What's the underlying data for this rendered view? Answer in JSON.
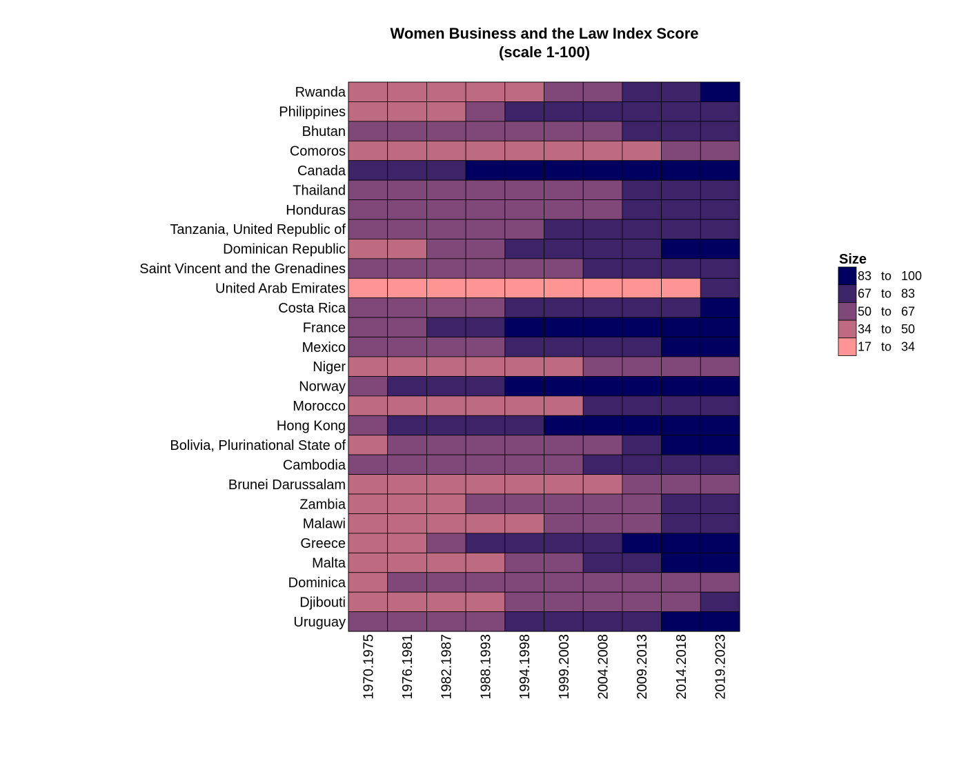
{
  "chart_data": {
    "type": "heatmap",
    "title": "Women Business and the Law Index Score",
    "subtitle": "(scale 1-100)",
    "rows": [
      "Rwanda",
      "Philippines",
      "Bhutan",
      "Comoros",
      "Canada",
      "Thailand",
      "Honduras",
      "Tanzania, United Republic of",
      "Dominican Republic",
      "Saint Vincent and the Grenadines",
      "United Arab Emirates",
      "Costa Rica",
      "France",
      "Mexico",
      "Niger",
      "Norway",
      "Morocco",
      "Hong Kong",
      "Bolivia, Plurinational State of",
      "Cambodia",
      "Brunei Darussalam",
      "Zambia",
      "Malawi",
      "Greece",
      "Malta",
      "Dominica",
      "Djibouti",
      "Uruguay"
    ],
    "columns": [
      "1970.1975",
      "1976.1981",
      "1982.1987",
      "1988.1993",
      "1994.1998",
      "1999.2003",
      "2004.2008",
      "2009.2013",
      "2014.2018",
      "2019.2023"
    ],
    "bins": [
      "17 to 34",
      "34 to 50",
      "50 to 67",
      "67 to 83",
      "83 to 100"
    ],
    "bin_colors": [
      "#ff9494",
      "#be6b82",
      "#7f4878",
      "#3d2468",
      "#000060"
    ],
    "legend_title": "Size",
    "legend_labels": [
      {
        "lo": "83",
        "sep": "to",
        "hi": "100"
      },
      {
        "lo": "67",
        "sep": "to",
        "hi": "83"
      },
      {
        "lo": "50",
        "sep": "to",
        "hi": "67"
      },
      {
        "lo": "34",
        "sep": "to",
        "hi": "50"
      },
      {
        "lo": "17",
        "sep": "to",
        "hi": "34"
      }
    ],
    "legend_position": "right",
    "cell_bins": [
      [
        1,
        1,
        1,
        1,
        1,
        2,
        2,
        3,
        3,
        4
      ],
      [
        1,
        1,
        1,
        2,
        3,
        3,
        3,
        3,
        3,
        3
      ],
      [
        2,
        2,
        2,
        2,
        2,
        2,
        2,
        3,
        3,
        3
      ],
      [
        1,
        1,
        1,
        1,
        1,
        1,
        1,
        1,
        2,
        2
      ],
      [
        3,
        3,
        3,
        4,
        4,
        4,
        4,
        4,
        4,
        4
      ],
      [
        2,
        2,
        2,
        2,
        2,
        2,
        2,
        3,
        3,
        3
      ],
      [
        2,
        2,
        2,
        2,
        2,
        2,
        2,
        3,
        3,
        3
      ],
      [
        2,
        2,
        2,
        2,
        2,
        3,
        3,
        3,
        3,
        3
      ],
      [
        1,
        1,
        2,
        2,
        3,
        3,
        3,
        3,
        4,
        4
      ],
      [
        2,
        2,
        2,
        2,
        2,
        2,
        3,
        3,
        3,
        3
      ],
      [
        0,
        0,
        0,
        0,
        0,
        0,
        0,
        0,
        0,
        3
      ],
      [
        2,
        2,
        2,
        2,
        3,
        3,
        3,
        3,
        3,
        4
      ],
      [
        2,
        2,
        3,
        3,
        4,
        4,
        4,
        4,
        4,
        4
      ],
      [
        2,
        2,
        2,
        2,
        3,
        3,
        3,
        3,
        4,
        4
      ],
      [
        1,
        1,
        1,
        1,
        1,
        1,
        2,
        2,
        2,
        2
      ],
      [
        2,
        3,
        3,
        3,
        4,
        4,
        4,
        4,
        4,
        4
      ],
      [
        1,
        1,
        1,
        1,
        1,
        1,
        3,
        3,
        3,
        3
      ],
      [
        2,
        3,
        3,
        3,
        3,
        4,
        4,
        4,
        4,
        4
      ],
      [
        1,
        2,
        2,
        2,
        2,
        2,
        2,
        3,
        4,
        4
      ],
      [
        2,
        2,
        2,
        2,
        2,
        2,
        3,
        3,
        3,
        3
      ],
      [
        1,
        1,
        1,
        1,
        1,
        1,
        1,
        2,
        2,
        2
      ],
      [
        1,
        1,
        1,
        2,
        2,
        2,
        2,
        2,
        3,
        3
      ],
      [
        1,
        1,
        1,
        1,
        1,
        2,
        2,
        2,
        3,
        3
      ],
      [
        1,
        1,
        2,
        3,
        3,
        3,
        3,
        4,
        4,
        4
      ],
      [
        1,
        1,
        1,
        1,
        2,
        2,
        3,
        3,
        4,
        4
      ],
      [
        1,
        2,
        2,
        2,
        2,
        2,
        2,
        2,
        2,
        2
      ],
      [
        1,
        1,
        1,
        1,
        2,
        2,
        2,
        2,
        2,
        3
      ],
      [
        2,
        2,
        2,
        2,
        3,
        3,
        3,
        3,
        4,
        4
      ]
    ]
  }
}
